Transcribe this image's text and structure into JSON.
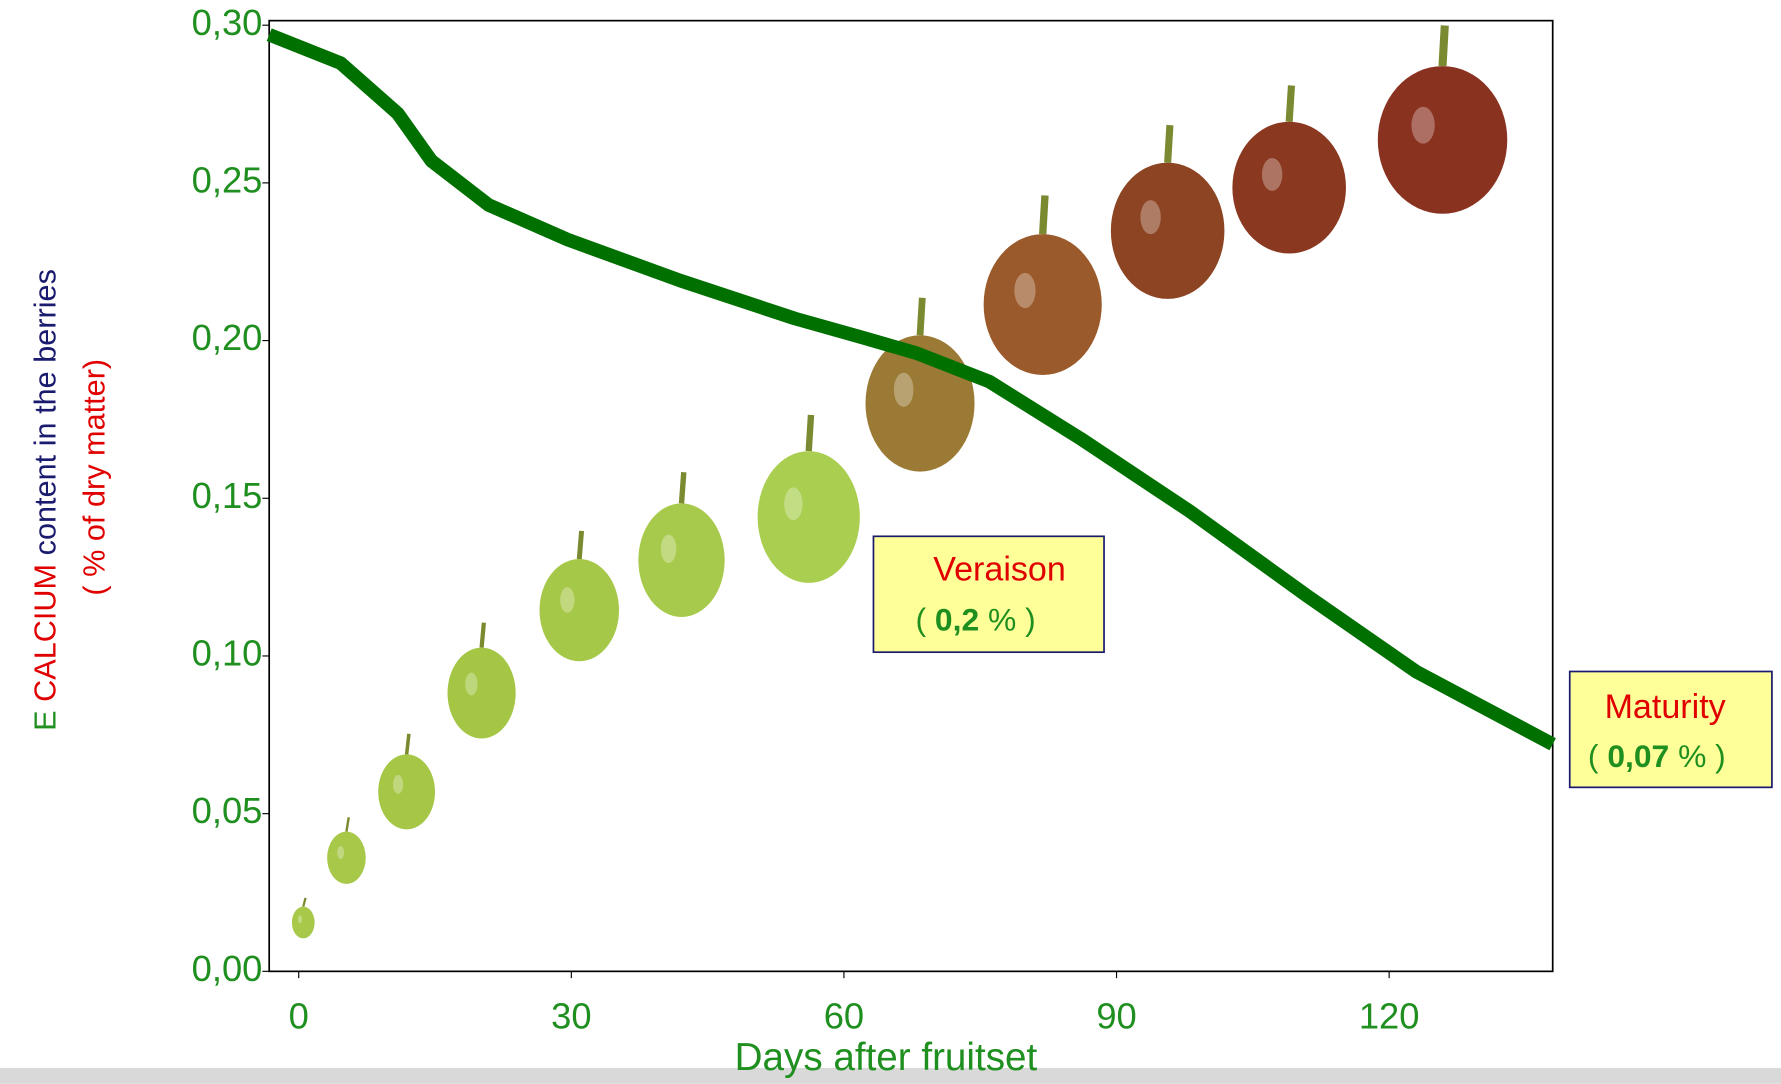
{
  "chart_data": {
    "type": "line",
    "x": [
      -3.25,
      4.6,
      10.9,
      14.6,
      20.9,
      29.6,
      42,
      54.6,
      62,
      68,
      76,
      86,
      98,
      111,
      123,
      138
    ],
    "series": [
      {
        "color": "#007000",
        "values": [
          0.297,
          0.288,
          0.272,
          0.257,
          0.243,
          0.232,
          0.219,
          0.207,
          0.201,
          0.196,
          0.187,
          0.169,
          0.146,
          0.119,
          0.095,
          0.072
        ]
      }
    ],
    "xlim": [
      -3.25,
      138
    ],
    "ylim": [
      0,
      0.3
    ],
    "xticks": [
      0,
      30,
      60,
      90,
      120
    ],
    "yticks": [
      {
        "value": 0,
        "label": "0,00"
      },
      {
        "value": 0.05,
        "label": "0,05"
      },
      {
        "value": 0.1,
        "label": "0,10"
      },
      {
        "value": 0.15,
        "label": "0,15"
      },
      {
        "value": 0.2,
        "label": "0,20"
      },
      {
        "value": 0.25,
        "label": "0,25"
      },
      {
        "value": 0.3,
        "label": "0,30"
      }
    ],
    "x_label": "Days after fruitset",
    "y_label": {
      "prefix": "E",
      "element": "CALCIUM",
      "rest": "content in the berries",
      "unit": "( % of dry matter)"
    },
    "annotations": [
      {
        "label": "Veraison",
        "open": "(",
        "value": "0,2",
        "close": "% )"
      },
      {
        "label": "Maturity",
        "open": "(",
        "value": "0,07",
        "close": "% )"
      }
    ]
  }
}
